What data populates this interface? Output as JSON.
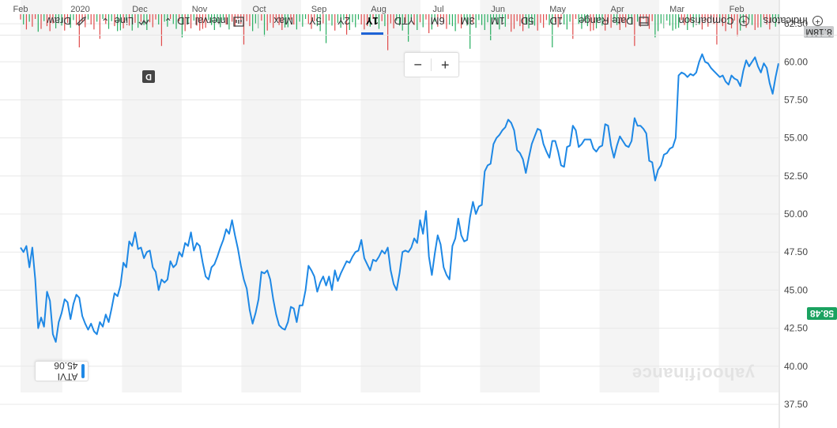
{
  "colors": {
    "line": "#1e88e5",
    "price_tag": "#1aa260",
    "vol_up": "#27ae60",
    "vol_down": "#e04b4b",
    "band": "#f4f4f4",
    "grid": "#e8e8e8"
  },
  "symbol_label": "ATVI 45.06",
  "current_price_label": "58.48",
  "volume_label": "8.18M",
  "watermark": "yahoo!finance",
  "d_badge": "D",
  "zoom": {
    "minus": "−",
    "plus": "+"
  },
  "toolbar": {
    "indicators": "Indicators",
    "comparison": "Comparison",
    "date_range": "Date Range",
    "ranges": [
      "1D",
      "5D",
      "1M",
      "3M",
      "6M",
      "YTD",
      "1Y",
      "2Y",
      "5Y",
      "Max"
    ],
    "active_range": "1Y",
    "interval": "Interval",
    "interval_value": "1D",
    "line": "Line",
    "draw": "Draw",
    "icons": {
      "indicators": "plus-circle-icon",
      "comparison": "plus-circle-icon",
      "date_range": "calendar-icon",
      "interval": "bar-chart-icon",
      "line": "line-chart-icon",
      "draw": "pencil-icon",
      "dropdown": "chevron-down-icon"
    }
  },
  "chart_data": {
    "type": "line",
    "y_inverted": true,
    "ylim": [
      37.5,
      63.75
    ],
    "y_ticks": [
      "37.50",
      "40.00",
      "42.50",
      "45.00",
      "47.50",
      "50.00",
      "52.50",
      "55.00",
      "57.50",
      "60.00",
      "62.50"
    ],
    "x_month_labels": [
      "Feb",
      "Mar",
      "Apr",
      "May",
      "Jun",
      "Jul",
      "Aug",
      "Sep",
      "Oct",
      "Nov",
      "Dec",
      "2020",
      "Feb"
    ],
    "series": [
      {
        "values": [
          59.9,
          59.0,
          57.9,
          58.6,
          59.6,
          59.9,
          59.3,
          59.7,
          60.3,
          60.0,
          59.7,
          60.1,
          59.4,
          58.4,
          58.8,
          58.9,
          59.1,
          58.5,
          58.7,
          59.1,
          59.0,
          59.2,
          59.4,
          59.6,
          59.9,
          60.0,
          60.5,
          60.0,
          59.3,
          59.1,
          59.2,
          59.0,
          59.2,
          59.3,
          59.1,
          55.0,
          54.4,
          54.3,
          54.0,
          53.9,
          53.2,
          52.9,
          52.2,
          53.4,
          53.5,
          55.3,
          55.6,
          55.8,
          55.8,
          56.3,
          54.8,
          54.4,
          54.5,
          54.8,
          55.1,
          54.5,
          53.7,
          54.5,
          55.8,
          55.9,
          54.5,
          54.4,
          54.1,
          54.3,
          54.9,
          54.9,
          54.9,
          54.6,
          54.4,
          55.5,
          55.8,
          54.5,
          54.4,
          53.1,
          53.2,
          54.1,
          54.8,
          54.8,
          53.7,
          54.1,
          54.6,
          55.5,
          55.6,
          55.1,
          54.6,
          53.7,
          52.7,
          53.6,
          54.0,
          54.2,
          55.5,
          56.0,
          56.2,
          55.7,
          55.5,
          55.2,
          55.0,
          54.6,
          53.3,
          53.2,
          52.8,
          50.6,
          50.5,
          50.0,
          50.8,
          49.8,
          48.3,
          48.2,
          48.6,
          49.7,
          48.4,
          47.9,
          45.7,
          46.0,
          46.5,
          48.0,
          48.6,
          47.4,
          46.0,
          47.2,
          50.2,
          48.7,
          49.6,
          48.1,
          48.4,
          47.8,
          47.5,
          47.6,
          47.5,
          46.1,
          45.0,
          45.4,
          46.3,
          47.8,
          47.4,
          47.6,
          47.2,
          46.9,
          47.0,
          46.3,
          46.7,
          47.1,
          48.3,
          47.6,
          47.5,
          47.2,
          46.8,
          46.9,
          46.5,
          46.1,
          45.6,
          46.3,
          45.0,
          45.9,
          45.3,
          45.9,
          45.5,
          44.9,
          45.9,
          46.3,
          46.6,
          45.0,
          44.0,
          44.0,
          42.9,
          43.8,
          43.9,
          42.9,
          42.4,
          42.5,
          42.7,
          43.4,
          44.4,
          45.7,
          46.3,
          46.1,
          46.2,
          44.4,
          43.5,
          42.8,
          43.7,
          45.1,
          45.7,
          46.6,
          47.7,
          48.6,
          49.6,
          48.7,
          49.0,
          48.3,
          47.8,
          47.2,
          46.7,
          46.5,
          45.7,
          45.9,
          46.8,
          47.9,
          48.1,
          47.6,
          48.8,
          47.9,
          48.1,
          47.2,
          47.5,
          46.7,
          46.5,
          46.9,
          45.7,
          45.5,
          45.7,
          45.0,
          46.2,
          46.5,
          47.6,
          47.5,
          47.1,
          47.8,
          47.7,
          48.8,
          47.9,
          48.2,
          46.5,
          46.8,
          45.3,
          44.6,
          44.8,
          43.8,
          42.9,
          43.4,
          42.6,
          42.9,
          42.1,
          42.3,
          42.8,
          42.4,
          42.8,
          43.3,
          44.5,
          44.7,
          44.1,
          43.1,
          44.2,
          44.4,
          43.5,
          42.9,
          41.6,
          42.1,
          44.3,
          44.9,
          42.6,
          43.2,
          42.5,
          45.7,
          47.8,
          46.5,
          47.9,
          47.5,
          47.8
        ]
      }
    ]
  }
}
